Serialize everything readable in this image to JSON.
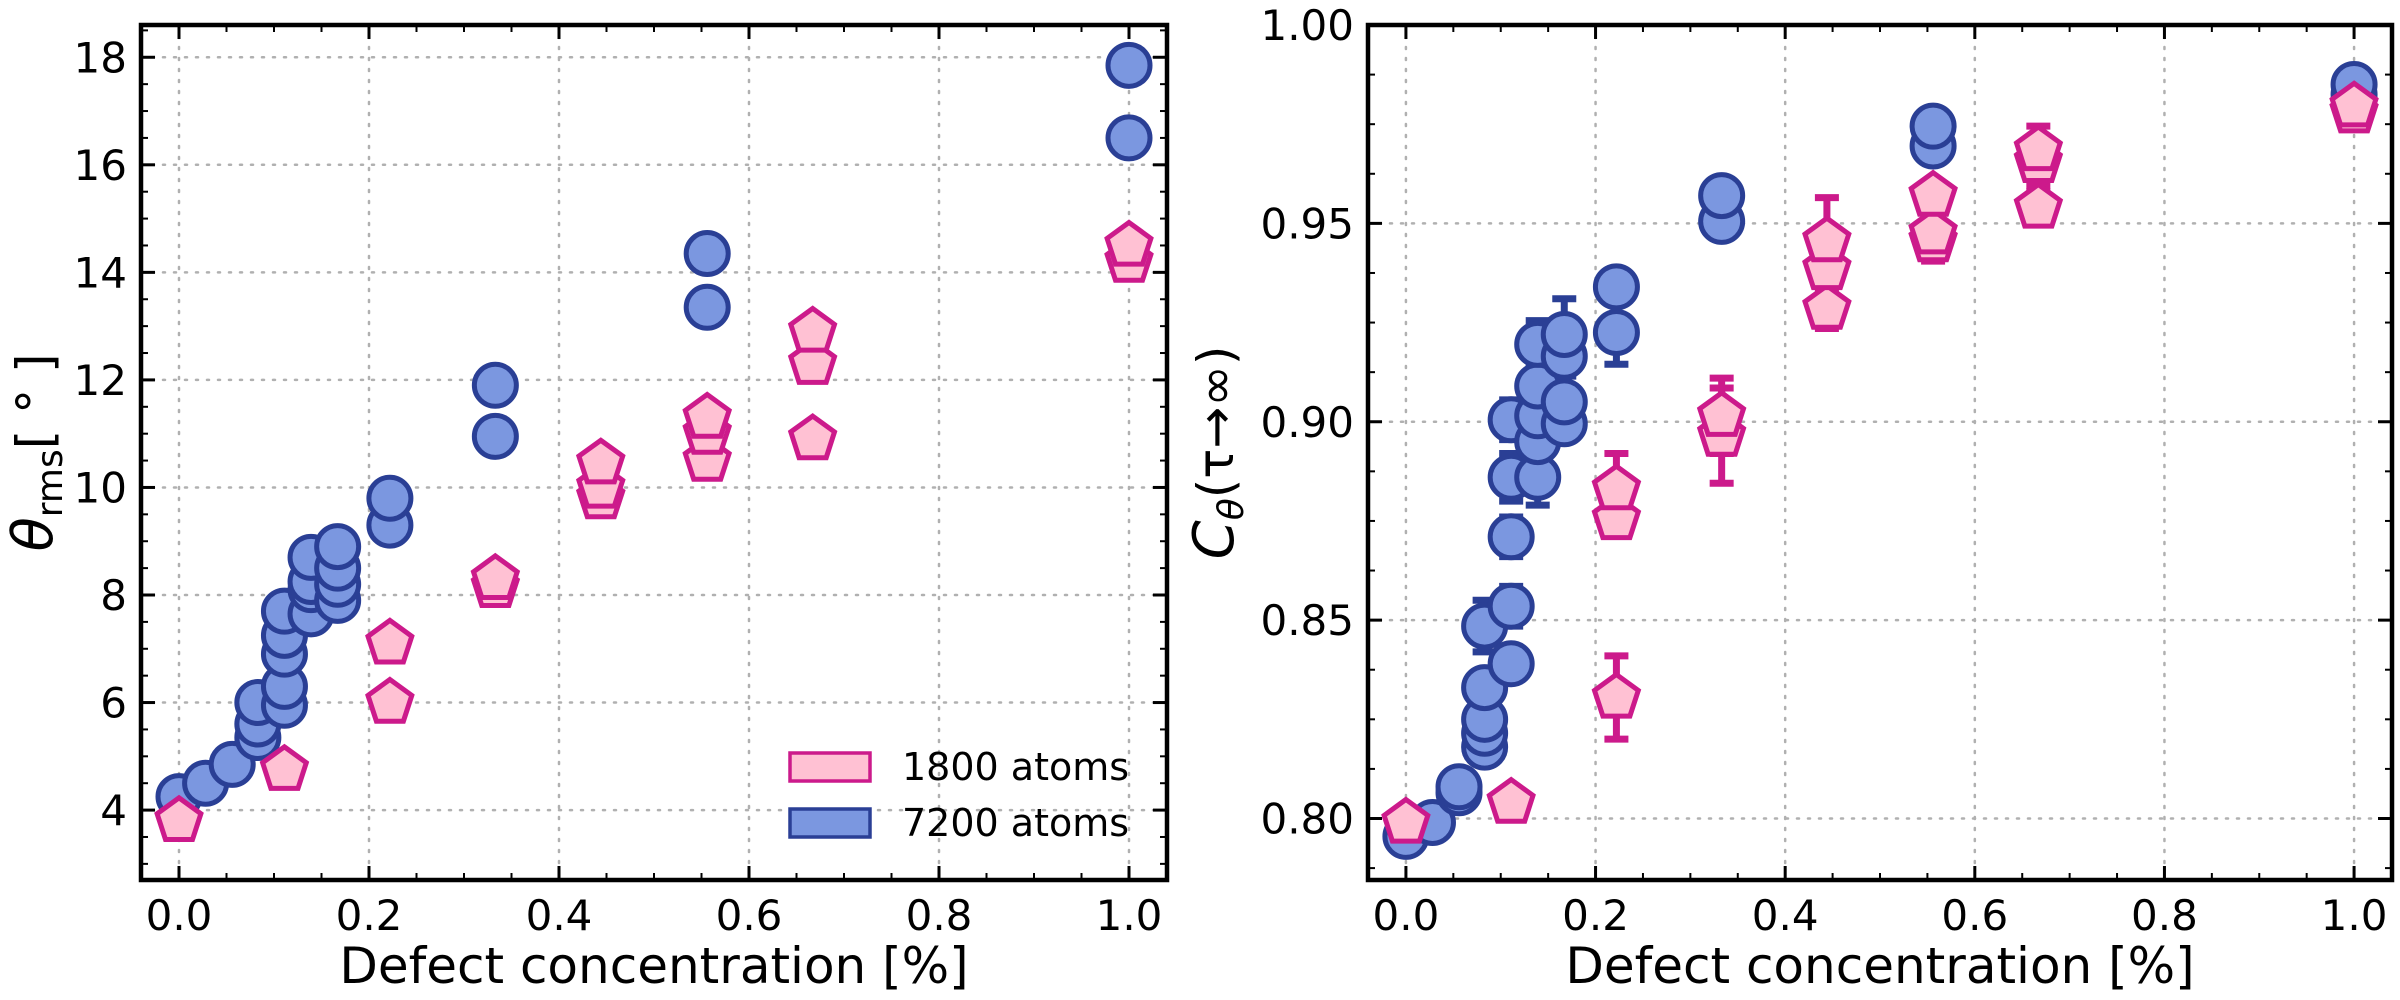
{
  "colors": {
    "pink_edge": "#cc1a8b",
    "pink_fill": "#ffc1d3",
    "blue_edge": "#2a3f95",
    "blue_fill": "#7b97e0"
  },
  "chart_data": [
    {
      "type": "scatter",
      "xlabel": "Defect concentration [%]",
      "ylabel": {
        "symbol": "θ",
        "subscript": "rms",
        "unit": "[ ° ]"
      },
      "xlim": [
        -0.04,
        1.04
      ],
      "ylim": [
        2.7,
        18.6
      ],
      "xticks": [
        0.0,
        0.2,
        0.4,
        0.6,
        0.8,
        1.0
      ],
      "xtick_labels": [
        "0.0",
        "0.2",
        "0.4",
        "0.6",
        "0.8",
        "1.0"
      ],
      "yticks": [
        4,
        6,
        8,
        10,
        12,
        14,
        16,
        18
      ],
      "ytick_labels": [
        "4",
        "6",
        "8",
        "10",
        "12",
        "14",
        "16",
        "18"
      ],
      "grid": true,
      "legend": {
        "location": "lower-right",
        "entries": [
          {
            "label": "1800 atoms",
            "series": "1800 atoms"
          },
          {
            "label": "7200 atoms",
            "series": "7200 atoms"
          }
        ]
      },
      "series": [
        {
          "name": "7200 atoms",
          "marker": "circle",
          "points": [
            {
              "x": 0.0,
              "y": 4.25
            },
            {
              "x": 0.028,
              "y": 4.5
            },
            {
              "x": 0.056,
              "y": 4.85
            },
            {
              "x": 0.083,
              "y": 5.35
            },
            {
              "x": 0.083,
              "y": 5.6
            },
            {
              "x": 0.083,
              "y": 6.0
            },
            {
              "x": 0.111,
              "y": 5.95
            },
            {
              "x": 0.111,
              "y": 6.3
            },
            {
              "x": 0.111,
              "y": 6.9
            },
            {
              "x": 0.111,
              "y": 7.25
            },
            {
              "x": 0.111,
              "y": 7.7
            },
            {
              "x": 0.139,
              "y": 7.65
            },
            {
              "x": 0.139,
              "y": 8.1
            },
            {
              "x": 0.139,
              "y": 8.25
            },
            {
              "x": 0.139,
              "y": 8.7
            },
            {
              "x": 0.167,
              "y": 7.9
            },
            {
              "x": 0.167,
              "y": 8.2
            },
            {
              "x": 0.167,
              "y": 8.5
            },
            {
              "x": 0.167,
              "y": 8.9
            },
            {
              "x": 0.222,
              "y": 9.3
            },
            {
              "x": 0.222,
              "y": 9.8
            },
            {
              "x": 0.333,
              "y": 10.95
            },
            {
              "x": 0.333,
              "y": 11.9
            },
            {
              "x": 0.556,
              "y": 13.35
            },
            {
              "x": 0.556,
              "y": 14.35
            },
            {
              "x": 1.0,
              "y": 16.5
            },
            {
              "x": 1.0,
              "y": 17.85
            }
          ]
        },
        {
          "name": "1800 atoms",
          "marker": "pentagon",
          "points": [
            {
              "x": 0.0,
              "y": 3.8
            },
            {
              "x": 0.111,
              "y": 4.75
            },
            {
              "x": 0.222,
              "y": 6.0
            },
            {
              "x": 0.222,
              "y": 7.1
            },
            {
              "x": 0.333,
              "y": 8.15
            },
            {
              "x": 0.333,
              "y": 8.3
            },
            {
              "x": 0.444,
              "y": 9.8
            },
            {
              "x": 0.444,
              "y": 10.0
            },
            {
              "x": 0.444,
              "y": 10.45
            },
            {
              "x": 0.556,
              "y": 10.5
            },
            {
              "x": 0.556,
              "y": 11.0
            },
            {
              "x": 0.556,
              "y": 11.3
            },
            {
              "x": 0.667,
              "y": 10.9
            },
            {
              "x": 0.667,
              "y": 12.3
            },
            {
              "x": 0.667,
              "y": 12.9
            },
            {
              "x": 1.0,
              "y": 14.2
            },
            {
              "x": 1.0,
              "y": 14.5
            }
          ]
        }
      ]
    },
    {
      "type": "scatter",
      "xlabel": "Defect concentration [%]",
      "ylabel": {
        "symbol": "C",
        "subscript": "θ",
        "unit": "(τ→∞)"
      },
      "xlim": [
        -0.04,
        1.04
      ],
      "ylim": [
        0.7845,
        1.0
      ],
      "xticks": [
        0.0,
        0.2,
        0.4,
        0.6,
        0.8,
        1.0
      ],
      "xtick_labels": [
        "0.0",
        "0.2",
        "0.4",
        "0.6",
        "0.8",
        "1.0"
      ],
      "yticks": [
        0.8,
        0.85,
        0.9,
        0.95,
        1.0
      ],
      "ytick_labels": [
        "0.80",
        "0.85",
        "0.90",
        "0.95",
        "1.00"
      ],
      "grid": true,
      "series": [
        {
          "name": "7200 atoms",
          "marker": "circle",
          "points": [
            {
              "x": 0.0,
              "y": 0.7955,
              "err": 0.001
            },
            {
              "x": 0.028,
              "y": 0.799,
              "err": 0.001
            },
            {
              "x": 0.056,
              "y": 0.8065,
              "err": 0.001
            },
            {
              "x": 0.056,
              "y": 0.808,
              "err": 0.001
            },
            {
              "x": 0.083,
              "y": 0.818,
              "err": 0.003
            },
            {
              "x": 0.083,
              "y": 0.8215,
              "err": 0.003
            },
            {
              "x": 0.083,
              "y": 0.825,
              "err": 0.003
            },
            {
              "x": 0.083,
              "y": 0.833,
              "err": 0.003
            },
            {
              "x": 0.083,
              "y": 0.8485,
              "err": 0.0065
            },
            {
              "x": 0.111,
              "y": 0.839,
              "err": 0.003
            },
            {
              "x": 0.111,
              "y": 0.8535,
              "err": 0.005
            },
            {
              "x": 0.111,
              "y": 0.871,
              "err": 0.005
            },
            {
              "x": 0.111,
              "y": 0.886,
              "err": 0.006
            },
            {
              "x": 0.111,
              "y": 0.9005,
              "err": 0.005
            },
            {
              "x": 0.139,
              "y": 0.886,
              "err": 0.007
            },
            {
              "x": 0.139,
              "y": 0.895,
              "err": 0.007
            },
            {
              "x": 0.139,
              "y": 0.9015,
              "err": 0.006
            },
            {
              "x": 0.139,
              "y": 0.909,
              "err": 0.006
            },
            {
              "x": 0.139,
              "y": 0.9195,
              "err": 0.006
            },
            {
              "x": 0.167,
              "y": 0.8995,
              "err": 0.004
            },
            {
              "x": 0.167,
              "y": 0.905,
              "err": 0.004
            },
            {
              "x": 0.167,
              "y": 0.9165,
              "err": 0.005
            },
            {
              "x": 0.167,
              "y": 0.922,
              "err": 0.009
            },
            {
              "x": 0.222,
              "y": 0.9225,
              "err": 0.008
            },
            {
              "x": 0.222,
              "y": 0.934,
              "err": 0.002
            },
            {
              "x": 0.333,
              "y": 0.9505,
              "err": 0.001
            },
            {
              "x": 0.333,
              "y": 0.957,
              "err": 0.001
            },
            {
              "x": 0.556,
              "y": 0.9695,
              "err": 0.001
            },
            {
              "x": 0.556,
              "y": 0.9745,
              "err": 0.001
            },
            {
              "x": 1.0,
              "y": 0.9825,
              "err": 0.0005
            },
            {
              "x": 1.0,
              "y": 0.985,
              "err": 0.0005
            }
          ]
        },
        {
          "name": "1800 atoms",
          "marker": "pentagon",
          "points": [
            {
              "x": 0.0,
              "y": 0.799,
              "err": 0.001
            },
            {
              "x": 0.111,
              "y": 0.804,
              "err": 0.001
            },
            {
              "x": 0.222,
              "y": 0.8305,
              "err": 0.0105
            },
            {
              "x": 0.222,
              "y": 0.8755,
              "err": 0.004
            },
            {
              "x": 0.222,
              "y": 0.883,
              "err": 0.009
            },
            {
              "x": 0.333,
              "y": 0.8965,
              "err": 0.012
            },
            {
              "x": 0.333,
              "y": 0.9015,
              "err": 0.0095
            },
            {
              "x": 0.444,
              "y": 0.9285,
              "err": 0.005
            },
            {
              "x": 0.444,
              "y": 0.9385,
              "err": 0.004
            },
            {
              "x": 0.444,
              "y": 0.9455,
              "err": 0.011
            },
            {
              "x": 0.556,
              "y": 0.9455,
              "err": 0.005
            },
            {
              "x": 0.556,
              "y": 0.9475,
              "err": 0.004
            },
            {
              "x": 0.556,
              "y": 0.957,
              "err": 0.003
            },
            {
              "x": 0.667,
              "y": 0.954,
              "err": 0.004
            },
            {
              "x": 0.667,
              "y": 0.9655,
              "err": 0.006
            },
            {
              "x": 0.667,
              "y": 0.9685,
              "err": 0.006
            },
            {
              "x": 1.0,
              "y": 0.978,
              "err": 0.001
            },
            {
              "x": 1.0,
              "y": 0.9795,
              "err": 0.001
            }
          ]
        }
      ]
    }
  ]
}
